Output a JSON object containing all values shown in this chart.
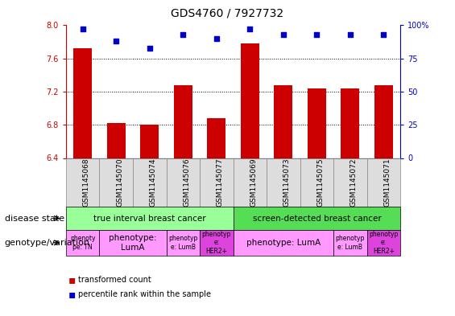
{
  "title": "GDS4760 / 7927732",
  "samples": [
    "GSM1145068",
    "GSM1145070",
    "GSM1145074",
    "GSM1145076",
    "GSM1145077",
    "GSM1145069",
    "GSM1145073",
    "GSM1145075",
    "GSM1145072",
    "GSM1145071"
  ],
  "transformed_count": [
    7.72,
    6.82,
    6.8,
    7.28,
    6.88,
    7.78,
    7.28,
    7.24,
    7.24,
    7.28
  ],
  "percentile_rank": [
    97,
    88,
    83,
    93,
    90,
    97,
    93,
    93,
    93,
    93
  ],
  "ylim_left": [
    6.4,
    8.0
  ],
  "ylim_right": [
    0,
    100
  ],
  "yticks_left": [
    6.4,
    6.8,
    7.2,
    7.6,
    8.0
  ],
  "yticks_right": [
    0,
    25,
    50,
    75,
    100
  ],
  "ytick_right_labels": [
    "0",
    "25",
    "50",
    "75",
    "100%"
  ],
  "bar_color": "#cc0000",
  "dot_color": "#0000cc",
  "bar_bottom": 6.4,
  "disease_state_groups": [
    {
      "label": "true interval breast cancer",
      "start": 0,
      "end": 5,
      "color": "#99ff99"
    },
    {
      "label": "screen-detected breast cancer",
      "start": 5,
      "end": 10,
      "color": "#55dd55"
    }
  ],
  "genotype_groups": [
    {
      "label": "phenoty\npe: TN",
      "start": 0,
      "end": 1,
      "color": "#ff99ff"
    },
    {
      "label": "phenotype:\nLumA",
      "start": 1,
      "end": 3,
      "color": "#ff99ff"
    },
    {
      "label": "phenotyp\ne: LumB",
      "start": 3,
      "end": 4,
      "color": "#ff99ff"
    },
    {
      "label": "phenotyp\ne:\nHER2+",
      "start": 4,
      "end": 5,
      "color": "#dd44dd"
    },
    {
      "label": "phenotype: LumA",
      "start": 5,
      "end": 8,
      "color": "#ff99ff"
    },
    {
      "label": "phenotyp\ne: LumB",
      "start": 8,
      "end": 9,
      "color": "#ff99ff"
    },
    {
      "label": "phenotyp\ne:\nHER2+",
      "start": 9,
      "end": 10,
      "color": "#dd44dd"
    }
  ],
  "left_axis_color": "#cc0000",
  "right_axis_color": "#0000cc",
  "label_fontsize": 8,
  "tick_fontsize": 7,
  "sample_fontsize": 6.5,
  "title_fontsize": 10
}
